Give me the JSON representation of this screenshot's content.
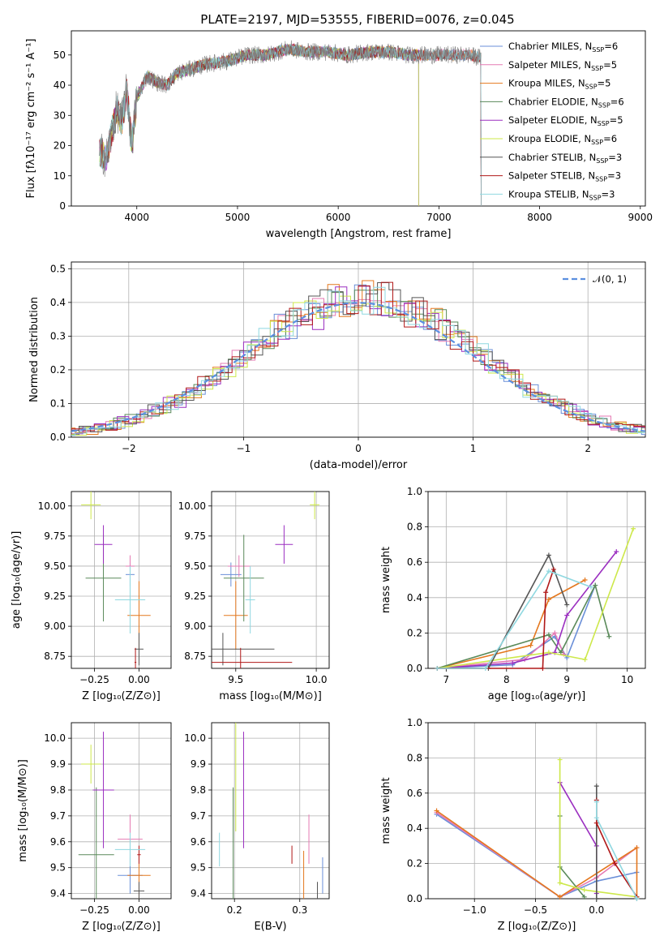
{
  "figure": {
    "title": "PLATE=2197, MJD=53555, FIBERID=0076, z=0.045"
  },
  "colors": {
    "Chabrier MILES": "#6a8fd8",
    "Salpeter MILES": "#e57ab3",
    "Kroupa MILES": "#e4781e",
    "Chabrier ELODIE": "#5a8a5a",
    "Salpeter ELODIE": "#9b2fc0",
    "Kroupa ELODIE": "#cde84a",
    "Chabrier STELIB": "#555555",
    "Salpeter STELIB": "#b01818",
    "Kroupa STELIB": "#8fd8e0",
    "gaussian": "#5b8fe0"
  },
  "chart_data": [
    {
      "id": "spectrum",
      "type": "line",
      "title": "PLATE=2197, MJD=53555, FIBERID=0076, z=0.045",
      "xlabel": "wavelength [Angstrom, rest frame]",
      "ylabel": "Flux [fλ10⁻¹⁷ erg cm⁻² s⁻¹ A⁻¹]",
      "xlim": [
        3350,
        9050
      ],
      "ylim": [
        0,
        58
      ],
      "xticks": [
        4000,
        5000,
        6000,
        7000,
        8000,
        9000
      ],
      "yticks": [
        0,
        10,
        20,
        30,
        40,
        50
      ],
      "grid": false,
      "legend_position": "upper right",
      "x": [
        3630,
        3700,
        3800,
        3850,
        3900,
        3950,
        4000,
        4100,
        4200,
        4300,
        4400,
        4500,
        4700,
        4900,
        5100,
        5300,
        5500,
        5700,
        5900,
        6100,
        6300,
        6500,
        6700,
        6900,
        7100,
        7300,
        7420
      ],
      "y": [
        18,
        16,
        32,
        28,
        38,
        20,
        36,
        43,
        41,
        40,
        44,
        45,
        47,
        48,
        50,
        50,
        52,
        51,
        51,
        50,
        51,
        51,
        50,
        50,
        50,
        50,
        49
      ],
      "series": [
        {
          "name": "Chabrier MILES",
          "nssp": "6"
        },
        {
          "name": "Salpeter MILES",
          "nssp": "5"
        },
        {
          "name": "Kroupa MILES",
          "nssp": "5"
        },
        {
          "name": "Chabrier ELODIE",
          "nssp": "6"
        },
        {
          "name": "Salpeter ELODIE",
          "nssp": "5"
        },
        {
          "name": "Kroupa ELODIE",
          "nssp": "6"
        },
        {
          "name": "Chabrier STELIB",
          "nssp": "3"
        },
        {
          "name": "Salpeter STELIB",
          "nssp": "3"
        },
        {
          "name": "Kroupa STELIB",
          "nssp": "3"
        }
      ],
      "model_extent": {
        "Chabrier MILES": [
          3630,
          7420
        ],
        "Salpeter MILES": [
          3630,
          7420
        ],
        "Kroupa MILES": [
          3630,
          7420
        ],
        "Chabrier ELODIE": [
          3630,
          6800
        ],
        "Salpeter ELODIE": [
          3630,
          6800
        ],
        "Kroupa ELODIE": [
          3630,
          6800
        ],
        "Chabrier STELIB": [
          3630,
          8850
        ],
        "Salpeter STELIB": [
          3630,
          8850
        ],
        "Kroupa STELIB": [
          3630,
          8850
        ]
      }
    },
    {
      "id": "residuals",
      "type": "histogram",
      "xlabel": "(data-model)/error",
      "ylabel": "Normed distribution",
      "xlim": [
        -2.5,
        2.5
      ],
      "ylim": [
        0,
        0.52
      ],
      "xticks": [
        -2,
        -1,
        0,
        1,
        2
      ],
      "yticks": [
        0.0,
        0.1,
        0.2,
        0.3,
        0.4,
        0.5
      ],
      "grid": true,
      "legend_position": "upper right",
      "reference_curve": {
        "label": "𝒩(0, 1)",
        "mean": 0,
        "sigma": 1
      },
      "bin_width": 0.1
    },
    {
      "id": "age-vs-Z",
      "type": "scatter",
      "xlabel": "Z [log₁₀(Z/Z⊙)]",
      "ylabel": "age  [log₁₀(age/yr)]",
      "xlim": [
        -0.38,
        0.18
      ],
      "ylim": [
        8.65,
        10.12
      ],
      "xticks": [
        -0.25,
        0.0
      ],
      "yticks": [
        8.75,
        9.0,
        9.25,
        9.5,
        9.75,
        10.0
      ],
      "grid": true
    },
    {
      "id": "age-vs-mass",
      "type": "scatter",
      "xlabel": "mass [log₁₀(M/M⊙)]",
      "ylabel": "",
      "xlim": [
        9.35,
        10.08
      ],
      "ylim": [
        8.65,
        10.12
      ],
      "xticks": [
        9.5,
        10.0
      ],
      "yticks": [
        8.75,
        9.0,
        9.25,
        9.5,
        9.75,
        10.0
      ],
      "grid": true
    },
    {
      "id": "mass-weight-vs-age",
      "type": "line",
      "xlabel": "age  [log₁₀(age/yr)]",
      "ylabel": "mass weight",
      "xlim": [
        6.7,
        10.3
      ],
      "ylim": [
        0,
        1.0
      ],
      "xticks": [
        7,
        8,
        9,
        10
      ],
      "yticks": [
        0.0,
        0.2,
        0.4,
        0.6,
        0.8,
        1.0
      ],
      "grid": true
    },
    {
      "id": "mass-vs-Z",
      "type": "scatter",
      "xlabel": "Z [log₁₀(Z/Z⊙)]",
      "ylabel": "mass [log₁₀(M/M⊙)]",
      "xlim": [
        -0.38,
        0.18
      ],
      "ylim": [
        9.38,
        10.06
      ],
      "xticks": [
        -0.25,
        0.0
      ],
      "yticks": [
        9.4,
        9.5,
        9.6,
        9.7,
        9.8,
        9.9,
        10.0
      ],
      "grid": true
    },
    {
      "id": "mass-vs-ebv",
      "type": "scatter",
      "xlabel": "E(B-V)",
      "ylabel": "",
      "xlim": [
        0.165,
        0.345
      ],
      "ylim": [
        9.38,
        10.06
      ],
      "xticks": [
        0.2,
        0.3
      ],
      "yticks": [
        9.4,
        9.5,
        9.6,
        9.7,
        9.8,
        9.9,
        10.0
      ],
      "grid": true
    },
    {
      "id": "mass-weight-vs-Z",
      "type": "line",
      "xlabel": "Z [log₁₀(Z/Z⊙)]",
      "ylabel": "mass weight",
      "xlim": [
        -1.38,
        0.4
      ],
      "ylim": [
        0,
        1.0
      ],
      "xticks": [
        -1.0,
        -0.5,
        0.0
      ],
      "yticks": [
        0.0,
        0.2,
        0.4,
        0.6,
        0.8,
        1.0
      ],
      "grid": true
    }
  ],
  "models": {
    "Chabrier MILES": {
      "Z": -0.05,
      "Zerr": 0.05,
      "age": 9.43,
      "ageerr": 0.2,
      "mass": 9.47,
      "masserr": 0.13,
      "ebv": 0.335,
      "ebverr": 0.14,
      "mwZ": -0.05,
      "mwZe": 0.14,
      "mass2": 9.47,
      "m2e": 0.14
    },
    "Salpeter MILES": {
      "Z": -0.05,
      "Zerr": 0.05,
      "age": 9.5,
      "ageerr": 0.18,
      "mass": 9.52,
      "masserr": 0.14,
      "ebv": 0.314,
      "ebverr": 0.19,
      "mwZ": -0.05,
      "mwZe": 0.14,
      "mass2": 9.61,
      "m2e": 0.19
    },
    "Kroupa MILES": {
      "Z": 0.0,
      "Zerr": 0.13,
      "age": 9.09,
      "ageerr": 0.57,
      "mass": 9.5,
      "masserr": 0.15,
      "ebv": 0.306,
      "ebverr": 0.19,
      "mwZ": 0.0,
      "mwZe": 0.13,
      "mass2": 9.47,
      "m2e": 0.19
    },
    "Chabrier ELODIE": {
      "Z": -0.2,
      "Zerr": 0.2,
      "age": 9.4,
      "ageerr": 0.72,
      "mass": 9.55,
      "masserr": 0.25,
      "ebv": 0.198,
      "ebverr": 0.52,
      "mwZ": -0.24,
      "mwZe": 0.2,
      "mass2": 9.55,
      "m2e": 0.52
    },
    "Salpeter ELODIE": {
      "Z": -0.2,
      "Zerr": 0.1,
      "age": 9.68,
      "ageerr": 0.32,
      "mass": 9.8,
      "masserr": 0.11,
      "ebv": 0.214,
      "ebverr": 0.45,
      "mwZ": -0.2,
      "mwZe": 0.12,
      "mass2": 9.8,
      "m2e": 0.45
    },
    "Kroupa ELODIE": {
      "Z": -0.27,
      "Zerr": 0.11,
      "age": 10.01,
      "ageerr": 0.24,
      "mass": 9.99,
      "masserr": 0.06,
      "ebv": 0.202,
      "ebverr": 0.52,
      "mwZ": -0.27,
      "mwZe": 0.11,
      "mass2": 9.9,
      "m2e": 0.15
    },
    "Chabrier STELIB": {
      "Z": 0.0,
      "Zerr": 0.05,
      "age": 8.81,
      "ageerr": 0.27,
      "mass": 9.42,
      "masserr": 0.64,
      "ebv": 0.327,
      "ebverr": 0.07,
      "mwZ": 0.0,
      "mwZe": 0.06,
      "mass2": 9.41,
      "m2e": 0.07
    },
    "Salpeter STELIB": {
      "Z": -0.02,
      "Zerr": 0.01,
      "age": 8.7,
      "ageerr": 0.24,
      "mass": 9.53,
      "masserr": 0.64,
      "ebv": 0.288,
      "ebverr": 0.07,
      "mwZ": 0.0,
      "mwZe": 0.02,
      "mass2": 9.55,
      "m2e": 0.07
    },
    "Kroupa STELIB": {
      "Z": -0.05,
      "Zerr": 0.17,
      "age": 9.22,
      "ageerr": 0.56,
      "mass": 9.59,
      "masserr": 0.06,
      "ebv": 0.177,
      "ebverr": 0.13,
      "mwZ": -0.05,
      "mwZe": 0.17,
      "mass2": 9.57,
      "m2e": 0.13
    }
  },
  "mass_weight_vs_age": {
    "Chabrier MILES": {
      "age": [
        6.85,
        8.1,
        8.8,
        9.0,
        9.47
      ],
      "w": [
        0.0,
        0.02,
        0.18,
        0.06,
        0.47
      ]
    },
    "Salpeter MILES": {
      "age": [
        6.85,
        8.3,
        8.8,
        8.95
      ],
      "w": [
        0.0,
        0.05,
        0.2,
        0.08
      ]
    },
    "Kroupa MILES": {
      "age": [
        6.85,
        8.4,
        8.7,
        9.3
      ],
      "w": [
        0.0,
        0.13,
        0.39,
        0.5
      ]
    },
    "Chabrier ELODIE": {
      "age": [
        6.85,
        8.7,
        8.9,
        9.47,
        9.7
      ],
      "w": [
        0.0,
        0.19,
        0.09,
        0.47,
        0.18
      ]
    },
    "Salpeter ELODIE": {
      "age": [
        6.85,
        8.1,
        8.8,
        9.0,
        9.82
      ],
      "w": [
        0.0,
        0.03,
        0.09,
        0.3,
        0.66
      ]
    },
    "Kroupa ELODIE": {
      "age": [
        6.85,
        8.7,
        9.3,
        10.1
      ],
      "w": [
        0.0,
        0.09,
        0.05,
        0.79
      ]
    },
    "Chabrier STELIB": {
      "age": [
        6.85,
        7.7,
        8.7,
        9.0
      ],
      "w": [
        0.0,
        0.0,
        0.64,
        0.36
      ]
    },
    "Salpeter STELIB": {
      "age": [
        6.85,
        8.6,
        8.65,
        8.78
      ],
      "w": [
        0.0,
        0.0,
        0.43,
        0.56
      ]
    },
    "Kroupa STELIB": {
      "age": [
        6.85,
        7.65,
        8.7,
        9.4
      ],
      "w": [
        0.0,
        0.0,
        0.55,
        0.46
      ]
    }
  },
  "mass_weight_vs_Z": {
    "Chabrier MILES": {
      "Z": [
        -1.31,
        -0.3,
        0.0,
        0.33
      ],
      "w": [
        0.48,
        0.01,
        0.1,
        0.15
      ]
    },
    "Salpeter MILES": {
      "Z": [
        -1.31,
        -0.3,
        0.0,
        0.33
      ],
      "w": [
        0.49,
        0.01,
        0.12,
        0.29
      ]
    },
    "Kroupa MILES": {
      "Z": [
        -1.31,
        -0.3,
        0.33,
        0.33
      ],
      "w": [
        0.5,
        0.01,
        0.29,
        0.01
      ]
    },
    "Chabrier ELODIE": {
      "Z": [
        -0.3,
        -0.3,
        -0.3,
        -0.1
      ],
      "w": [
        0.47,
        0.18,
        0.18,
        0.01
      ]
    },
    "Salpeter ELODIE": {
      "Z": [
        -0.3,
        0.0,
        0.0
      ],
      "w": [
        0.66,
        0.3,
        0.03
      ]
    },
    "Kroupa ELODIE": {
      "Z": [
        -0.3,
        -0.3,
        -0.1,
        0.33
      ],
      "w": [
        0.79,
        0.09,
        0.05,
        0.01
      ]
    },
    "Chabrier STELIB": {
      "Z": [
        0.0,
        0.0,
        0.33
      ],
      "w": [
        0.64,
        0.0,
        0.0
      ]
    },
    "Salpeter STELIB": {
      "Z": [
        0.0,
        0.0,
        0.15,
        0.33
      ],
      "w": [
        0.56,
        0.43,
        0.2,
        0.01
      ]
    },
    "Kroupa STELIB": {
      "Z": [
        0.0,
        0.0,
        0.33
      ],
      "w": [
        0.55,
        0.46,
        0.0
      ]
    }
  }
}
